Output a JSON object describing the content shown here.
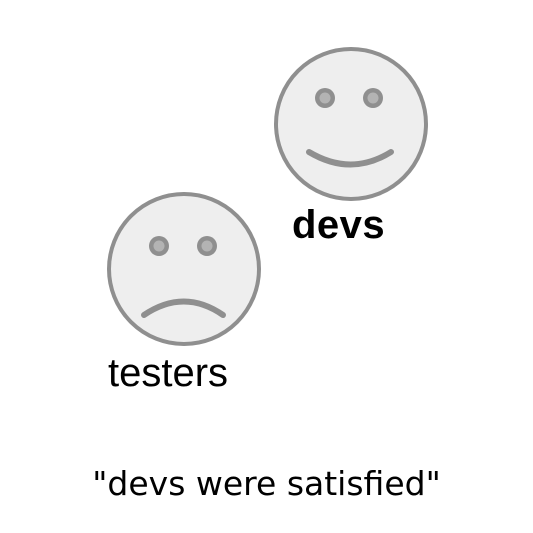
{
  "figure": {
    "groups": [
      {
        "id": "devs",
        "label": "devs",
        "mood": "happy",
        "icon": "smiley-face-icon"
      },
      {
        "id": "testers",
        "label": "testers",
        "mood": "sad",
        "icon": "frowning-face-icon"
      }
    ],
    "caption": "\"devs were satisfied\""
  },
  "colors": {
    "face_fill": "#eeeeee",
    "face_stroke": "#8f8f8f",
    "feature": "#8f8f8f",
    "text": "#000000",
    "background": "#ffffff"
  }
}
